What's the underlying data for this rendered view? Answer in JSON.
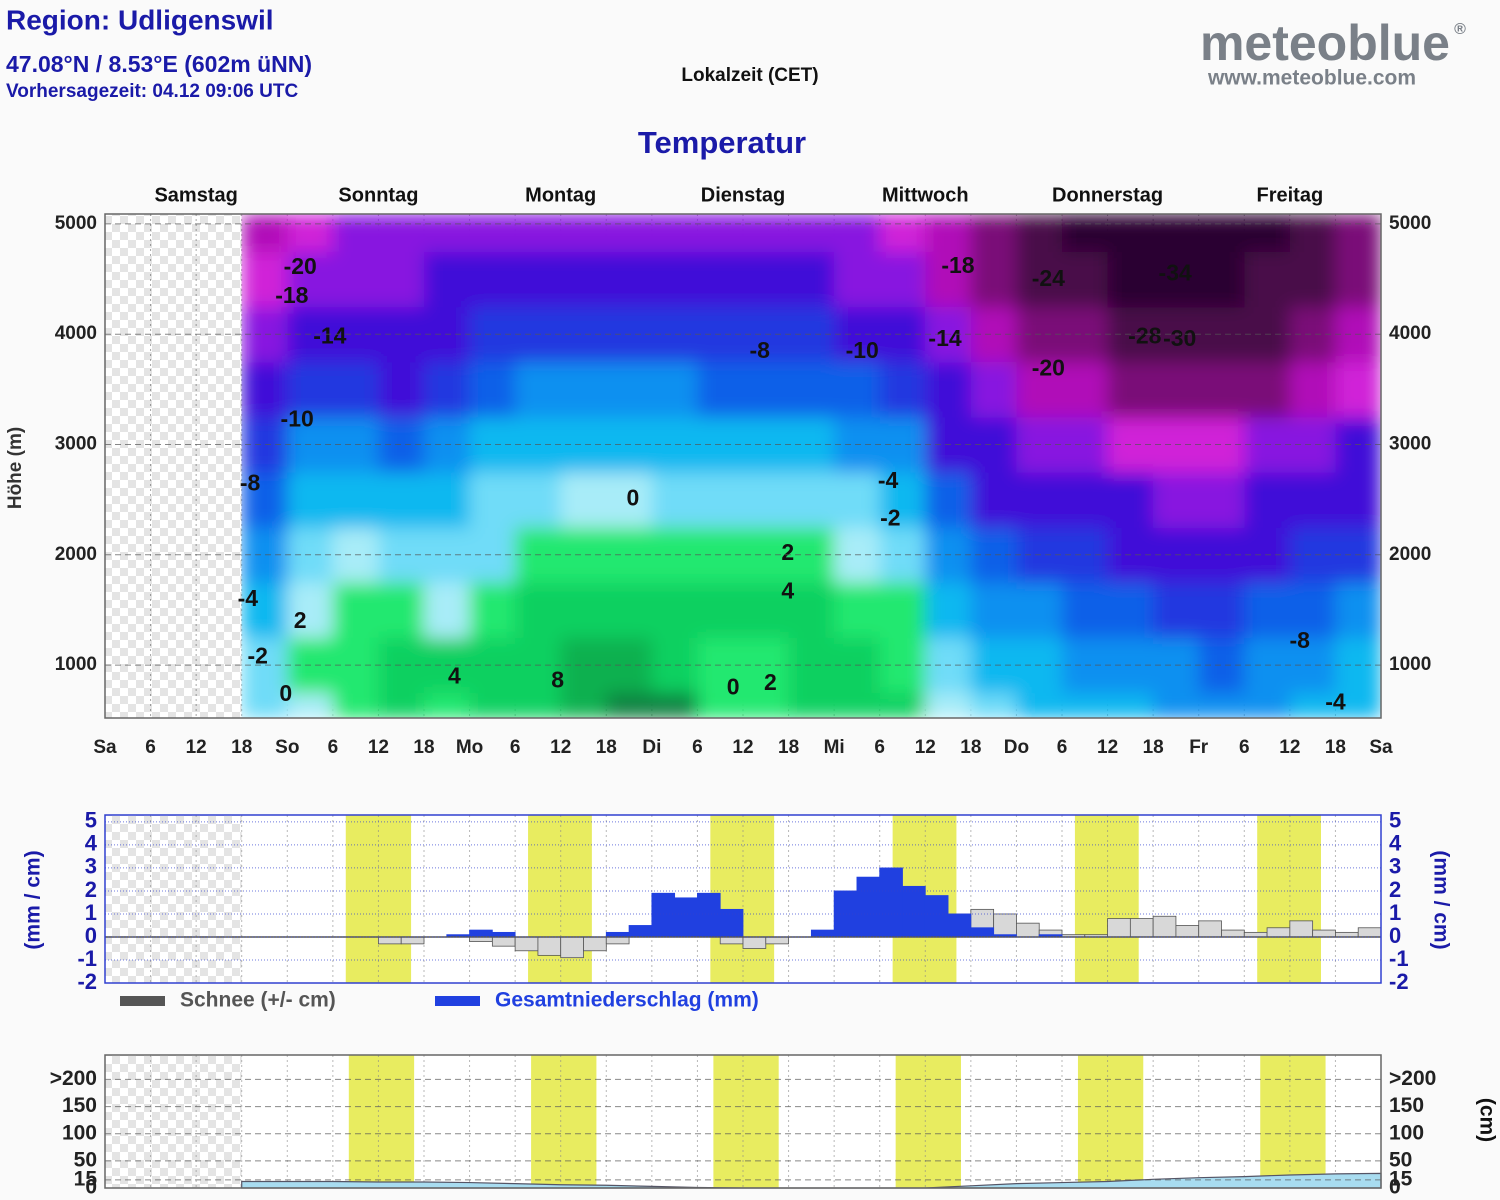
{
  "header": {
    "region": "Region: Udligenswil",
    "coords": "47.08°N / 8.53°E (602m üNN)",
    "forecast_time": "Vorhersagezeit: 04.12 09:06 UTC",
    "local_time": "Lokalzeit (CET)",
    "logo": "meteoblue",
    "logo_mark": "®",
    "logo_url": "www.meteoblue.com"
  },
  "chart_data": [
    {
      "type": "heatmap",
      "title": "Temperatur",
      "y_label": "Höhe (m)",
      "day_labels": [
        "Samstag",
        "Sonntag",
        "Montag",
        "Dienstag",
        "Mittwoch",
        "Donnerstag",
        "Freitag"
      ],
      "x": [
        18,
        24,
        30,
        36,
        42,
        48,
        54,
        60,
        66,
        72,
        78,
        84,
        90,
        96,
        102,
        108,
        114,
        120,
        126,
        132,
        138,
        144,
        150,
        156,
        162
      ],
      "y": [
        500,
        1000,
        1500,
        2000,
        2500,
        3000,
        3500,
        4000,
        4500,
        5000
      ],
      "values": [
        [
          -1,
          0,
          1,
          3,
          2,
          3,
          4,
          6,
          8,
          7,
          1,
          2,
          4,
          4,
          3,
          0,
          -2,
          -3,
          -4,
          -4,
          -5,
          -5,
          -5,
          -4,
          -3
        ],
        [
          -2,
          1,
          2,
          3,
          3,
          3,
          4,
          5,
          6,
          4,
          1,
          2,
          3,
          3,
          2,
          -1,
          -3,
          -4,
          -5,
          -6,
          -6,
          -7,
          -6,
          -5,
          -4
        ],
        [
          -4,
          0,
          2,
          1,
          0,
          1,
          3,
          4,
          4,
          3,
          3,
          3,
          3,
          2,
          1,
          -3,
          -5,
          -6,
          -7,
          -8,
          -9,
          -9,
          -8,
          -7,
          -6
        ],
        [
          -6,
          -2,
          0,
          -1,
          -2,
          -1,
          1,
          2,
          2,
          1,
          1,
          1,
          1,
          0,
          -1,
          -5,
          -8,
          -9,
          -10,
          -11,
          -12,
          -12,
          -11,
          -10,
          -9
        ],
        [
          -7,
          -4,
          -3,
          -3,
          -4,
          -2,
          -1,
          0,
          0,
          -1,
          -1,
          -1,
          -1,
          -2,
          -3,
          -8,
          -11,
          -12,
          -13,
          -14,
          -15,
          -15,
          -14,
          -13,
          -12
        ],
        [
          -9,
          -6,
          -6,
          -7,
          -6,
          -4,
          -3,
          -3,
          -3,
          -3,
          -4,
          -4,
          -4,
          -5,
          -6,
          -11,
          -14,
          -16,
          -18,
          -19,
          -20,
          -20,
          -18,
          -16,
          -14
        ],
        [
          -12,
          -9,
          -9,
          -11,
          -9,
          -7,
          -6,
          -6,
          -6,
          -6,
          -7,
          -7,
          -7,
          -8,
          -10,
          -14,
          -18,
          -21,
          -24,
          -26,
          -27,
          -27,
          -25,
          -22,
          -19
        ],
        [
          -16,
          -13,
          -13,
          -14,
          -12,
          -10,
          -9,
          -9,
          -9,
          -9,
          -9,
          -9,
          -10,
          -12,
          -14,
          -18,
          -22,
          -26,
          -28,
          -30,
          -31,
          -31,
          -29,
          -26,
          -22
        ],
        [
          -19,
          -16,
          -15,
          -15,
          -14,
          -13,
          -12,
          -12,
          -12,
          -12,
          -12,
          -12,
          -13,
          -15,
          -17,
          -21,
          -25,
          -29,
          -31,
          -33,
          -33,
          -33,
          -32,
          -29,
          -25
        ],
        [
          -22,
          -19,
          -18,
          -17,
          -16,
          -15,
          -15,
          -15,
          -15,
          -15,
          -15,
          -15,
          -16,
          -18,
          -20,
          -24,
          -28,
          -32,
          -34,
          -35,
          -35,
          -35,
          -34,
          -32,
          -28
        ]
      ],
      "color_scale": [
        {
          "value": -99,
          "color": "#2a0030"
        },
        {
          "value": -32,
          "color": "#4a0848"
        },
        {
          "value": -28,
          "color": "#7a0878"
        },
        {
          "value": -24,
          "color": "#b010b8"
        },
        {
          "value": -20,
          "color": "#d020d8"
        },
        {
          "value": -18,
          "color": "#8818e0"
        },
        {
          "value": -14,
          "color": "#4010d8"
        },
        {
          "value": -10,
          "color": "#2038e0"
        },
        {
          "value": -8,
          "color": "#1060e8"
        },
        {
          "value": -6,
          "color": "#0890f0"
        },
        {
          "value": -4,
          "color": "#10b8f0"
        },
        {
          "value": -2,
          "color": "#70dcf8"
        },
        {
          "value": 0,
          "color": "#a8ecf8"
        },
        {
          "value": 0.5,
          "color": "#20e870"
        },
        {
          "value": 3,
          "color": "#10d060"
        },
        {
          "value": 5,
          "color": "#10b050"
        },
        {
          "value": 7,
          "color": "#108040"
        }
      ],
      "annotations": [
        {
          "x": 25.7,
          "y": 4600,
          "value": -20
        },
        {
          "x": 24.6,
          "y": 4340,
          "value": -18
        },
        {
          "x": 29.6,
          "y": 3970,
          "value": -14
        },
        {
          "x": 25.3,
          "y": 3220,
          "value": -10
        },
        {
          "x": 19.1,
          "y": 2640,
          "value": -8
        },
        {
          "x": 18.8,
          "y": 1590,
          "value": -4
        },
        {
          "x": 20.1,
          "y": 1070,
          "value": -2
        },
        {
          "x": 23.8,
          "y": 730,
          "value": 0
        },
        {
          "x": 25.7,
          "y": 1390,
          "value": 2
        },
        {
          "x": 46,
          "y": 890,
          "value": 4
        },
        {
          "x": 59.6,
          "y": 850,
          "value": 8
        },
        {
          "x": 69.5,
          "y": 2500,
          "value": 0
        },
        {
          "x": 89.9,
          "y": 2010,
          "value": 2
        },
        {
          "x": 89.9,
          "y": 1660,
          "value": 4
        },
        {
          "x": 82.7,
          "y": 790,
          "value": 0
        },
        {
          "x": 87.6,
          "y": 830,
          "value": 2
        },
        {
          "x": 86.2,
          "y": 3840,
          "value": -8
        },
        {
          "x": 99.7,
          "y": 3840,
          "value": -10
        },
        {
          "x": 110.6,
          "y": 3950,
          "value": -14
        },
        {
          "x": 112.3,
          "y": 4610,
          "value": -18
        },
        {
          "x": 103.1,
          "y": 2660,
          "value": -4
        },
        {
          "x": 103.4,
          "y": 2320,
          "value": -2
        },
        {
          "x": 124.2,
          "y": 4490,
          "value": -24
        },
        {
          "x": 124.2,
          "y": 3680,
          "value": -20
        },
        {
          "x": 140.9,
          "y": 4540,
          "value": -34
        },
        {
          "x": 136.9,
          "y": 3970,
          "value": -28
        },
        {
          "x": 141.5,
          "y": 3950,
          "value": -30
        },
        {
          "x": 157.3,
          "y": 1210,
          "value": -8
        },
        {
          "x": 162,
          "y": 650,
          "value": -4
        }
      ],
      "xlim": [
        0,
        168
      ],
      "xticks": [
        {
          "value": 0,
          "label": "Sa"
        },
        6,
        12,
        18,
        {
          "value": 24,
          "label": "So"
        },
        {
          "value": 30,
          "label": "6"
        },
        {
          "value": 36,
          "label": "12"
        },
        {
          "value": 42,
          "label": "18"
        },
        {
          "value": 48,
          "label": "Mo"
        },
        {
          "value": 54,
          "label": "6"
        },
        {
          "value": 60,
          "label": "12"
        },
        {
          "value": 66,
          "label": "18"
        },
        {
          "value": 72,
          "label": "Di"
        },
        {
          "value": 78,
          "label": "6"
        },
        {
          "value": 84,
          "label": "12"
        },
        {
          "value": 90,
          "label": "18"
        },
        {
          "value": 96,
          "label": "Mi"
        },
        {
          "value": 102,
          "label": "6"
        },
        {
          "value": 108,
          "label": "12"
        },
        {
          "value": 114,
          "label": "18"
        },
        {
          "value": 120,
          "label": "Do"
        },
        {
          "value": 126,
          "label": "6"
        },
        {
          "value": 132,
          "label": "12"
        },
        {
          "value": 138,
          "label": "18"
        },
        {
          "value": 144,
          "label": "Fr"
        },
        {
          "value": 150,
          "label": "6"
        },
        {
          "value": 156,
          "label": "12"
        },
        {
          "value": 162,
          "label": "18"
        },
        {
          "value": 168,
          "label": "Sa"
        }
      ],
      "ylim": [
        520,
        5090
      ],
      "yticks": [
        1000,
        2000,
        3000,
        4000,
        5000
      ],
      "grid": true
    },
    {
      "type": "bar",
      "y_label": "(mm / cm)",
      "x": [
        18,
        21,
        24,
        27,
        30,
        33,
        36,
        39,
        42,
        45,
        48,
        51,
        54,
        57,
        60,
        63,
        66,
        69,
        72,
        75,
        78,
        81,
        84,
        87,
        90,
        93,
        96,
        99,
        102,
        105,
        108,
        111,
        114,
        117,
        120,
        123,
        126,
        129,
        132,
        135,
        138,
        141,
        144,
        147,
        150,
        153,
        156,
        159,
        162,
        165
      ],
      "series": [
        {
          "name": "Schnee (+/- cm)",
          "color": "#555555",
          "values": [
            0,
            0,
            0,
            0,
            0,
            0,
            -0.3,
            -0.3,
            0,
            0,
            -0.2,
            -0.4,
            -0.6,
            -0.8,
            -0.9,
            -0.6,
            -0.3,
            0,
            0,
            0,
            0,
            -0.3,
            -0.5,
            -0.3,
            0,
            0,
            0,
            0,
            0,
            0,
            0.5,
            1.0,
            1.2,
            1.0,
            0.6,
            0.3,
            0.1,
            0.1,
            0.8,
            0.8,
            0.9,
            0.5,
            0.7,
            0.3,
            0.2,
            0.4,
            0.7,
            0.3,
            0.2,
            0.4
          ]
        },
        {
          "name": "Gesamtniederschlag (mm)",
          "color": "#2040e0",
          "values": [
            0,
            0,
            0,
            0,
            0,
            0,
            0,
            0,
            0,
            0.1,
            0.3,
            0.2,
            0,
            0,
            0,
            0,
            0.2,
            0.5,
            1.9,
            1.7,
            1.9,
            1.2,
            0,
            0,
            0,
            0.3,
            2.0,
            2.6,
            3.0,
            2.2,
            1.8,
            1.0,
            0.4,
            0.1,
            0,
            0.1,
            0,
            0,
            0,
            0,
            0,
            0,
            0,
            0,
            0,
            0,
            0,
            0,
            0,
            0
          ]
        }
      ],
      "daylight": [
        [
          31.7,
          40.3
        ],
        [
          55.7,
          64.1
        ],
        [
          79.7,
          88.1
        ],
        [
          103.7,
          112.1
        ],
        [
          127.7,
          136.1
        ],
        [
          151.7,
          160.1
        ]
      ],
      "xlim": [
        0,
        168
      ],
      "ylim": [
        -2,
        5.3
      ],
      "yticks": [
        -2,
        -1,
        0,
        1,
        2,
        3,
        4,
        5
      ],
      "grid": true
    },
    {
      "type": "area",
      "y_label": "(cm)",
      "color": "#a8dcf0",
      "x": [
        18,
        24,
        30,
        36,
        42,
        48,
        54,
        60,
        66,
        72,
        78,
        84,
        90,
        96,
        102,
        108,
        114,
        120,
        126,
        132,
        138,
        144,
        150,
        156,
        162,
        168
      ],
      "values": [
        12,
        12,
        12,
        11,
        11,
        10,
        8,
        6,
        5,
        3,
        1,
        0,
        0,
        0,
        0,
        0,
        4,
        8,
        10,
        12,
        16,
        19,
        21,
        24,
        26,
        27
      ],
      "daylight": [
        [
          32.1,
          40.7
        ],
        [
          56.1,
          64.7
        ],
        [
          80.1,
          88.7
        ],
        [
          104.1,
          112.7
        ],
        [
          128.1,
          136.7
        ],
        [
          152.1,
          160.7
        ]
      ],
      "xlim": [
        0,
        168
      ],
      "ylim": [
        0,
        245
      ],
      "yticks": [
        0,
        15,
        50,
        100,
        150,
        {
          "value": 200,
          "label": ">200"
        }
      ],
      "grid": true
    }
  ]
}
